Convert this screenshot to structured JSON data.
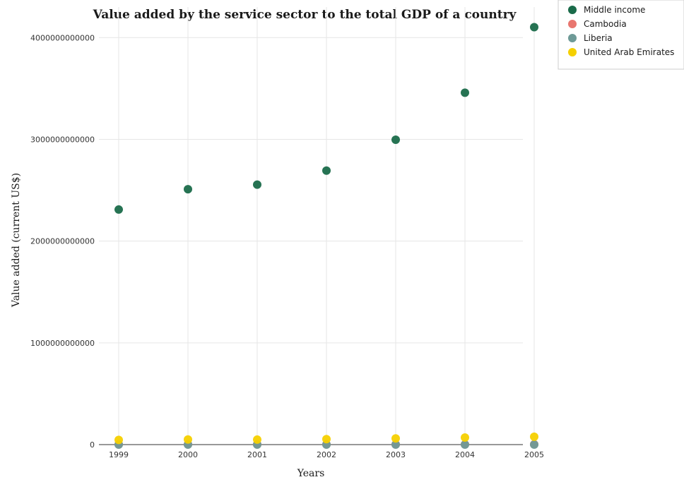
{
  "chart_data": {
    "type": "scatter",
    "title": "Value added by the service sector to the total GDP of a country",
    "xlabel": "Years",
    "ylabel": "Value added (current US$)",
    "x": [
      "1999",
      "2000",
      "2001",
      "2002",
      "2003",
      "2004",
      "2005"
    ],
    "ylim": [
      0,
      4300000000000
    ],
    "yticks": [
      0,
      1000000000000,
      2000000000000,
      3000000000000,
      4000000000000
    ],
    "ytick_labels": [
      "0",
      "1000000000000",
      "2000000000000",
      "3000000000000",
      "4000000000000"
    ],
    "grid": true,
    "legend_position": "top-right",
    "series": [
      {
        "name": "Middle income",
        "color": "#1a6b4a",
        "values": [
          2310000000000,
          2510000000000,
          2555000000000,
          2693000000000,
          2996000000000,
          3458000000000,
          4102000000000
        ]
      },
      {
        "name": "Cambodia",
        "color": "#e8766f",
        "values": [
          1400000000,
          1500000000,
          1600000000,
          1700000000,
          1800000000,
          2100000000,
          2400000000
        ]
      },
      {
        "name": "Liberia",
        "color": "#6e9a97",
        "values": [
          150000000,
          160000000,
          160000000,
          170000000,
          140000000,
          160000000,
          180000000
        ]
      },
      {
        "name": "United Arab Emirates",
        "color": "#f5d000",
        "values": [
          46000000000,
          50000000000,
          49000000000,
          54000000000,
          61000000000,
          69000000000,
          77000000000
        ]
      }
    ]
  }
}
